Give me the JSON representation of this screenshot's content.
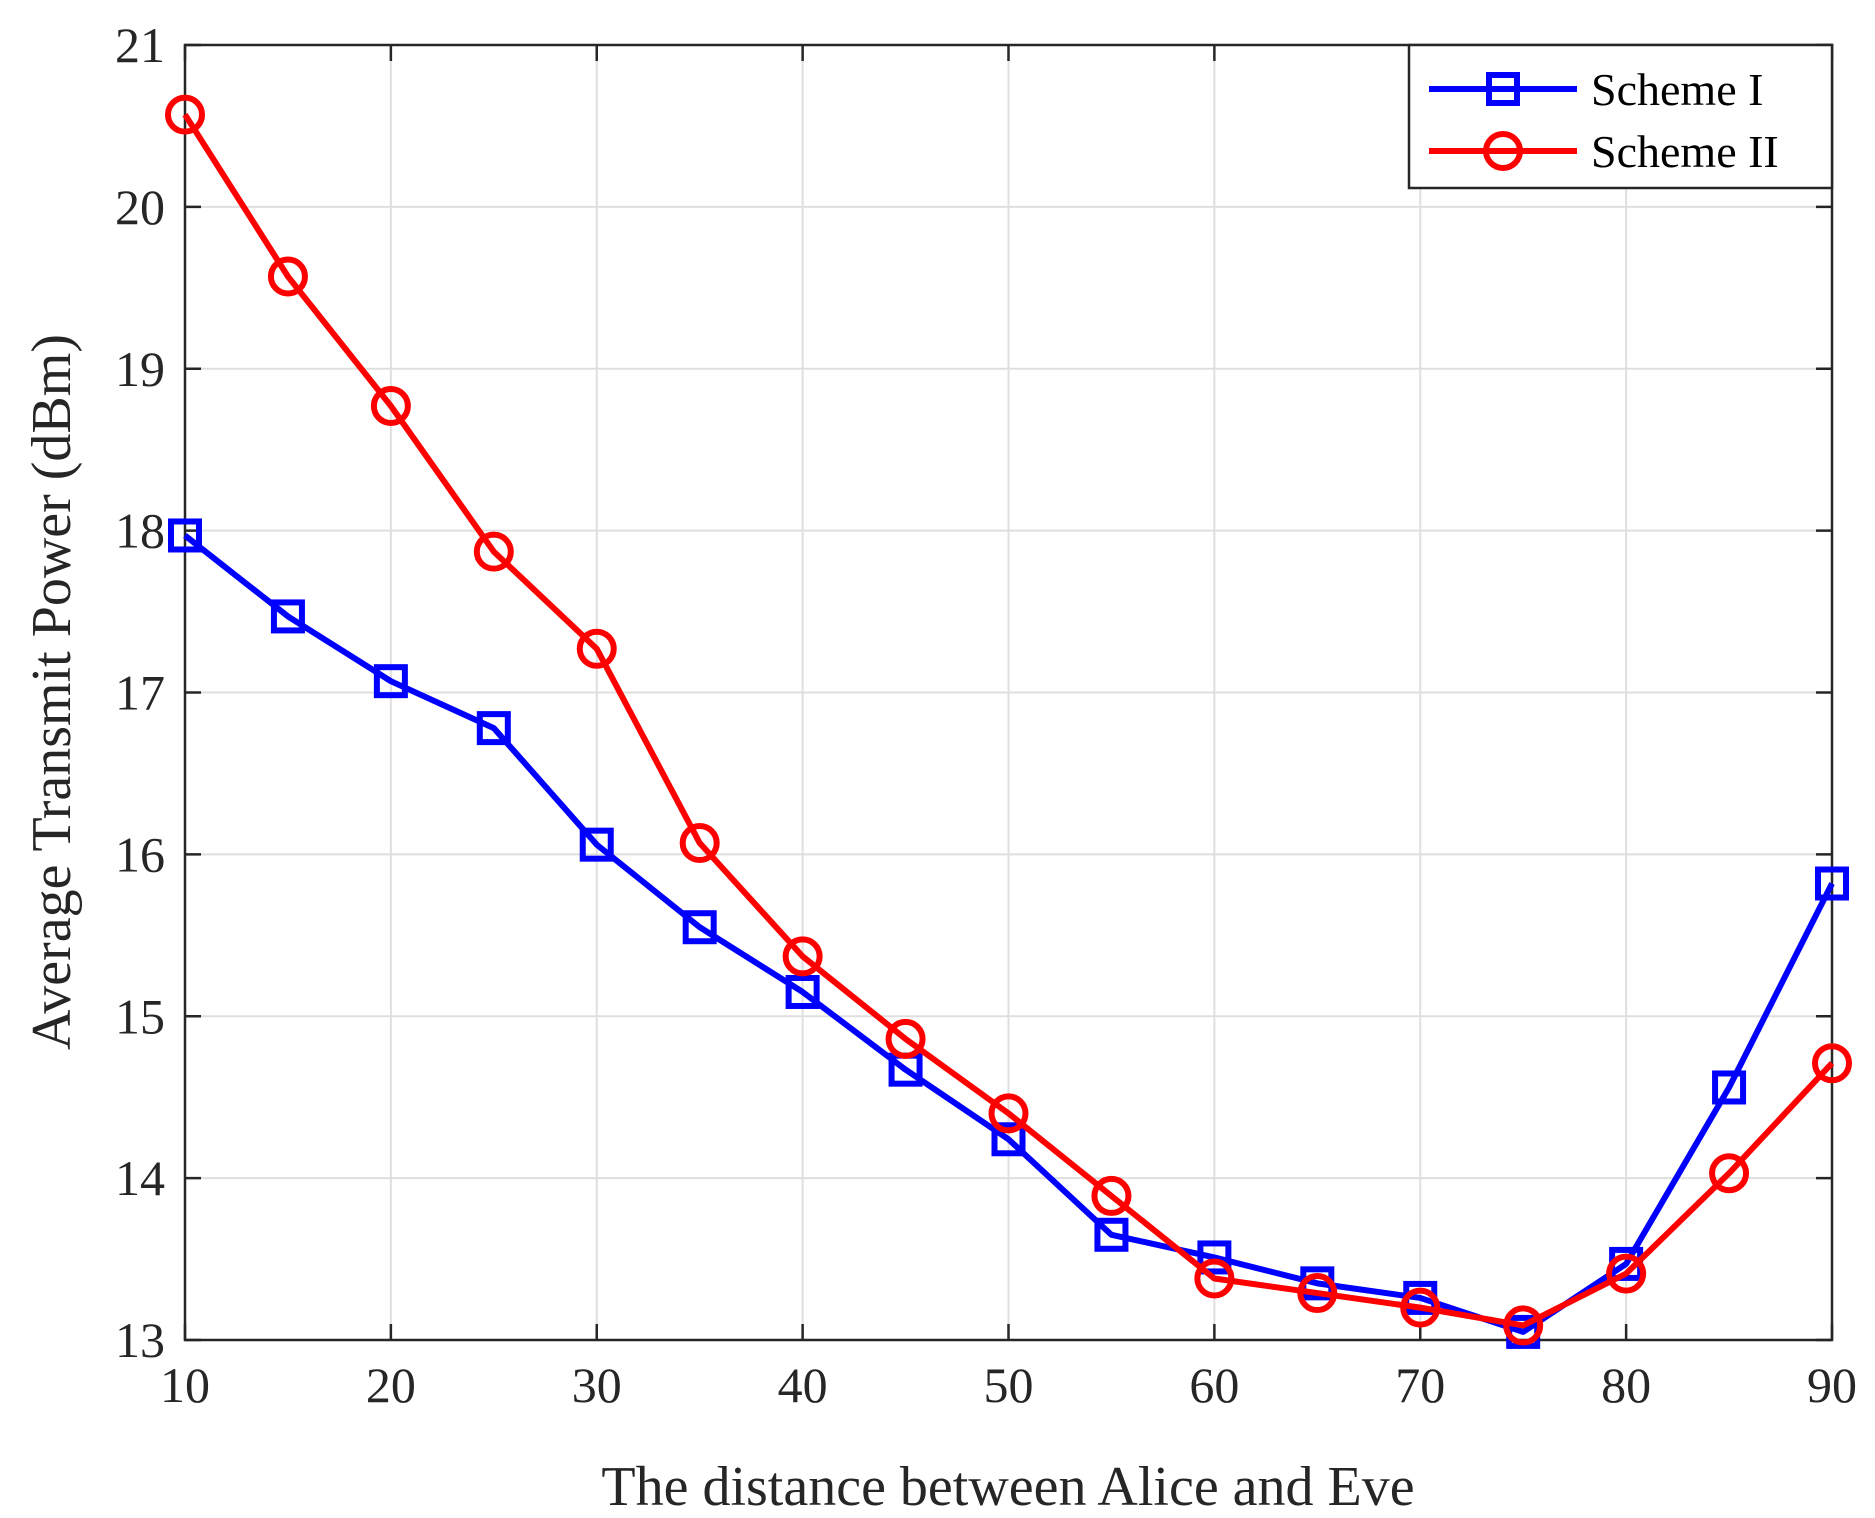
{
  "chart_data": {
    "type": "line",
    "title": "",
    "xlabel": "The distance between Alice and Eve",
    "ylabel": "Average Transmit Power (dBm)",
    "xlim": [
      10,
      90
    ],
    "ylim": [
      13,
      21
    ],
    "xticks": [
      10,
      20,
      30,
      40,
      50,
      60,
      70,
      80,
      90
    ],
    "yticks": [
      13,
      14,
      15,
      16,
      17,
      18,
      19,
      20,
      21
    ],
    "grid": true,
    "legend_position": "top-right",
    "x": [
      10,
      15,
      20,
      25,
      30,
      35,
      40,
      45,
      50,
      55,
      60,
      65,
      70,
      75,
      80,
      85,
      90
    ],
    "series": [
      {
        "name": "Scheme I",
        "color": "#0000ff",
        "marker": "square",
        "values": [
          17.97,
          17.47,
          17.07,
          16.78,
          16.06,
          15.55,
          15.15,
          14.67,
          14.24,
          13.65,
          13.51,
          13.35,
          13.26,
          13.05,
          13.47,
          14.56,
          15.82
        ]
      },
      {
        "name": "Scheme II",
        "color": "#ff0000",
        "marker": "circle",
        "values": [
          20.57,
          19.57,
          18.77,
          17.87,
          17.27,
          16.07,
          15.37,
          14.86,
          14.4,
          13.89,
          13.38,
          13.29,
          13.2,
          13.09,
          13.41,
          14.03,
          14.71
        ]
      }
    ]
  }
}
